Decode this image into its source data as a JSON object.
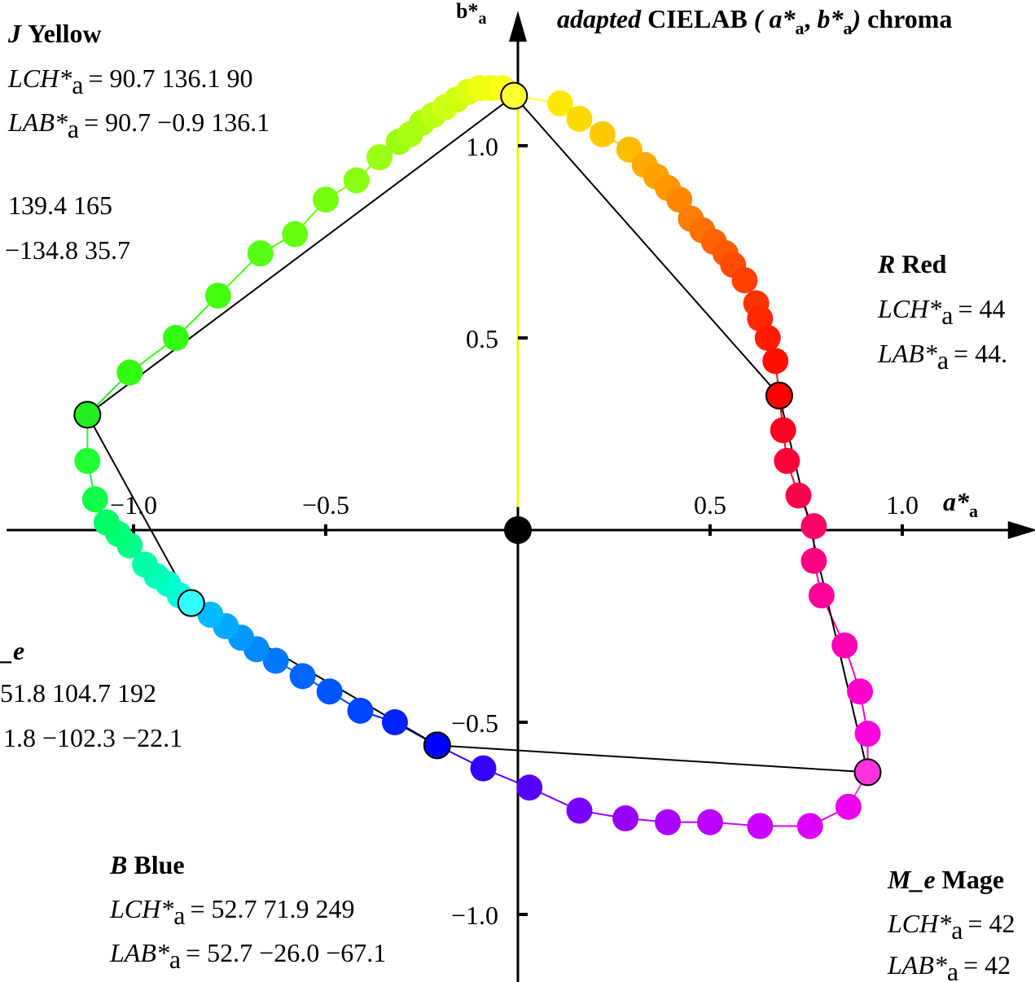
{
  "chart_data": {
    "type": "scatter",
    "title": "adapted CIELAB ( a*a, b*a) chroma",
    "title_parts": {
      "adapted": "adapted",
      "cielab": "CIELAB",
      "open": "(",
      "a": "a*",
      "sub_a": "a",
      "comma": ",",
      "b": "b*",
      "sub_b": "a",
      "close": ")",
      "tail": "chroma"
    },
    "xlabel": {
      "main": "a*",
      "sub": "a"
    },
    "ylabel": {
      "main": "b*",
      "sub": "a"
    },
    "xlim": [
      -1.33,
      1.33
    ],
    "ylim": [
      -1.18,
      1.33
    ],
    "xticks": [
      {
        "v": -1.0,
        "label": "−1.0"
      },
      {
        "v": -0.5,
        "label": "−0.5"
      },
      {
        "v": 0.5,
        "label": "0.5"
      },
      {
        "v": 1.0,
        "label": "1.0"
      }
    ],
    "yticks": [
      {
        "v": 1.0,
        "label": "1.0"
      },
      {
        "v": 0.5,
        "label": "0.5"
      },
      {
        "v": -0.5,
        "label": "−0.5"
      },
      {
        "v": -1.0,
        "label": "−1.0"
      }
    ],
    "origin_point": {
      "x": 0,
      "y": 0,
      "color": "#000000"
    },
    "primaries": [
      {
        "key": "J",
        "x": -0.01,
        "y": 1.13,
        "color": "#ffff33"
      },
      {
        "key": "R",
        "x": 0.68,
        "y": 0.35,
        "color": "#ff0000"
      },
      {
        "key": "M",
        "x": 0.91,
        "y": -0.63,
        "color": "#ff33dd"
      },
      {
        "key": "B",
        "x": -0.21,
        "y": -0.56,
        "color": "#0000ff"
      },
      {
        "key": "C",
        "x": -0.85,
        "y": -0.19,
        "color": "#33ffff"
      },
      {
        "key": "G",
        "x": -1.12,
        "y": 0.3,
        "color": "#22ee22"
      }
    ],
    "polygon_order": [
      "J",
      "R",
      "M",
      "B",
      "C",
      "G",
      "J"
    ],
    "series": [
      {
        "segment": "J-R",
        "points": [
          {
            "x": 0.11,
            "y": 1.11,
            "c": "#ffe800"
          },
          {
            "x": 0.16,
            "y": 1.07,
            "c": "#ffd800"
          },
          {
            "x": 0.22,
            "y": 1.03,
            "c": "#ffc800"
          },
          {
            "x": 0.29,
            "y": 0.99,
            "c": "#ffbb00"
          },
          {
            "x": 0.33,
            "y": 0.95,
            "c": "#ffaa00"
          },
          {
            "x": 0.36,
            "y": 0.92,
            "c": "#ffa000"
          },
          {
            "x": 0.39,
            "y": 0.89,
            "c": "#ff9500"
          },
          {
            "x": 0.42,
            "y": 0.86,
            "c": "#ff8800"
          },
          {
            "x": 0.45,
            "y": 0.81,
            "c": "#ff7d00"
          },
          {
            "x": 0.48,
            "y": 0.78,
            "c": "#ff7000"
          },
          {
            "x": 0.51,
            "y": 0.75,
            "c": "#ff6400"
          },
          {
            "x": 0.54,
            "y": 0.72,
            "c": "#ff5800"
          },
          {
            "x": 0.56,
            "y": 0.69,
            "c": "#ff4c00"
          },
          {
            "x": 0.59,
            "y": 0.65,
            "c": "#ff4000"
          },
          {
            "x": 0.62,
            "y": 0.59,
            "c": "#ff3300"
          },
          {
            "x": 0.63,
            "y": 0.55,
            "c": "#ff2800"
          },
          {
            "x": 0.65,
            "y": 0.5,
            "c": "#ff1c00"
          },
          {
            "x": 0.67,
            "y": 0.44,
            "c": "#ff1000"
          }
        ]
      },
      {
        "segment": "R-M",
        "points": [
          {
            "x": 0.69,
            "y": 0.26,
            "c": "#ff0022"
          },
          {
            "x": 0.7,
            "y": 0.18,
            "c": "#ff0038"
          },
          {
            "x": 0.73,
            "y": 0.09,
            "c": "#ff004c"
          },
          {
            "x": 0.77,
            "y": 0.01,
            "c": "#ff0066"
          },
          {
            "x": 0.77,
            "y": -0.08,
            "c": "#ff0080"
          },
          {
            "x": 0.79,
            "y": -0.17,
            "c": "#ff0099"
          },
          {
            "x": 0.85,
            "y": -0.3,
            "c": "#ff00b5"
          },
          {
            "x": 0.89,
            "y": -0.42,
            "c": "#ff00cc"
          },
          {
            "x": 0.91,
            "y": -0.53,
            "c": "#ff00dd"
          }
        ]
      },
      {
        "segment": "M-B",
        "points": [
          {
            "x": 0.86,
            "y": -0.72,
            "c": "#ee00ee"
          },
          {
            "x": 0.76,
            "y": -0.77,
            "c": "#dd00ff"
          },
          {
            "x": 0.63,
            "y": -0.77,
            "c": "#cc00ff"
          },
          {
            "x": 0.5,
            "y": -0.76,
            "c": "#bb00ff"
          },
          {
            "x": 0.39,
            "y": -0.76,
            "c": "#aa00ff"
          },
          {
            "x": 0.28,
            "y": -0.75,
            "c": "#9900ff"
          },
          {
            "x": 0.16,
            "y": -0.73,
            "c": "#7700ff"
          },
          {
            "x": 0.03,
            "y": -0.67,
            "c": "#5500ff"
          },
          {
            "x": -0.09,
            "y": -0.62,
            "c": "#3300ff"
          }
        ]
      },
      {
        "segment": "B-C",
        "points": [
          {
            "x": -0.32,
            "y": -0.5,
            "c": "#0022ff"
          },
          {
            "x": -0.41,
            "y": -0.47,
            "c": "#0044ff"
          },
          {
            "x": -0.49,
            "y": -0.42,
            "c": "#0055ff"
          },
          {
            "x": -0.56,
            "y": -0.38,
            "c": "#0066ff"
          },
          {
            "x": -0.63,
            "y": -0.34,
            "c": "#0077ff"
          },
          {
            "x": -0.68,
            "y": -0.31,
            "c": "#0088ff"
          },
          {
            "x": -0.72,
            "y": -0.28,
            "c": "#0099ff"
          },
          {
            "x": -0.76,
            "y": -0.25,
            "c": "#00aaff"
          },
          {
            "x": -0.8,
            "y": -0.22,
            "c": "#00bbff"
          }
        ]
      },
      {
        "segment": "C-G",
        "points": [
          {
            "x": -0.88,
            "y": -0.17,
            "c": "#00ffdd"
          },
          {
            "x": -0.91,
            "y": -0.14,
            "c": "#00ffcc"
          },
          {
            "x": -0.94,
            "y": -0.12,
            "c": "#00ffbb"
          },
          {
            "x": -0.97,
            "y": -0.09,
            "c": "#00ffaa"
          },
          {
            "x": -1.01,
            "y": -0.04,
            "c": "#00ff88"
          },
          {
            "x": -1.04,
            "y": -0.01,
            "c": "#00ff77"
          },
          {
            "x": -1.07,
            "y": 0.02,
            "c": "#00ff66"
          },
          {
            "x": -1.1,
            "y": 0.08,
            "c": "#11ff44"
          },
          {
            "x": -1.12,
            "y": 0.18,
            "c": "#22ff33"
          }
        ]
      },
      {
        "segment": "G-J",
        "points": [
          {
            "x": -1.01,
            "y": 0.41,
            "c": "#33ff11"
          },
          {
            "x": -0.89,
            "y": 0.5,
            "c": "#33ff11"
          },
          {
            "x": -0.78,
            "y": 0.61,
            "c": "#44ff11"
          },
          {
            "x": -0.67,
            "y": 0.72,
            "c": "#55ff11"
          },
          {
            "x": -0.58,
            "y": 0.77,
            "c": "#66ff11"
          },
          {
            "x": -0.5,
            "y": 0.86,
            "c": "#77ff11"
          },
          {
            "x": -0.42,
            "y": 0.91,
            "c": "#88ff11"
          },
          {
            "x": -0.36,
            "y": 0.97,
            "c": "#99ff11"
          },
          {
            "x": -0.31,
            "y": 1.01,
            "c": "#99ff11"
          },
          {
            "x": -0.28,
            "y": 1.03,
            "c": "#aaff11"
          },
          {
            "x": -0.25,
            "y": 1.06,
            "c": "#aaff11"
          },
          {
            "x": -0.22,
            "y": 1.08,
            "c": "#bbff11"
          },
          {
            "x": -0.19,
            "y": 1.1,
            "c": "#ccff11"
          },
          {
            "x": -0.16,
            "y": 1.12,
            "c": "#ccff11"
          },
          {
            "x": -0.13,
            "y": 1.14,
            "c": "#ddff11"
          },
          {
            "x": -0.1,
            "y": 1.15,
            "c": "#eeff11"
          },
          {
            "x": -0.07,
            "y": 1.15,
            "c": "#eeff11"
          },
          {
            "x": -0.04,
            "y": 1.15,
            "c": "#ffff11"
          }
        ]
      }
    ],
    "annotations": [
      {
        "id": "yellow",
        "title_key": "J",
        "title_name": "Yellow",
        "line1_label": "LCH*",
        "line1_sub": "a",
        "line1_value": "= 90.7  136.1  90",
        "line2_label": "LAB*",
        "line2_sub": "a",
        "line2_value": "= 90.7  −0.9  136.1"
      },
      {
        "id": "green",
        "line1_fragment": "139.4  165",
        "line2_fragment": "−134.8  35.7"
      },
      {
        "id": "red",
        "title_key": "R",
        "title_name": "Red",
        "line1_label": "LCH*",
        "line1_sub": "a",
        "line1_value": "= 44",
        "line2_label": "LAB*",
        "line2_sub": "a",
        "line2_value": "= 44."
      },
      {
        "id": "cyan",
        "title_fragment": "_e",
        "line1_fragment": "51.8  104.7  192",
        "line2_fragment": "1.8  −102.3  −22.1"
      },
      {
        "id": "blue",
        "title_key": "B",
        "title_name": "Blue",
        "line1_label": "LCH*",
        "line1_sub": "a",
        "line1_value": "= 52.7  71.9  249",
        "line2_label": "LAB*",
        "line2_sub": "a",
        "line2_value": "= 52.7  −26.0  −67.1"
      },
      {
        "id": "magenta",
        "title_key": "M_e",
        "title_name": "Mage",
        "line1_label": "LCH*",
        "line1_sub": "a",
        "line1_value": "= 42",
        "line2_label": "LAB*",
        "line2_sub": "a",
        "line2_value": "= 42"
      }
    ]
  }
}
